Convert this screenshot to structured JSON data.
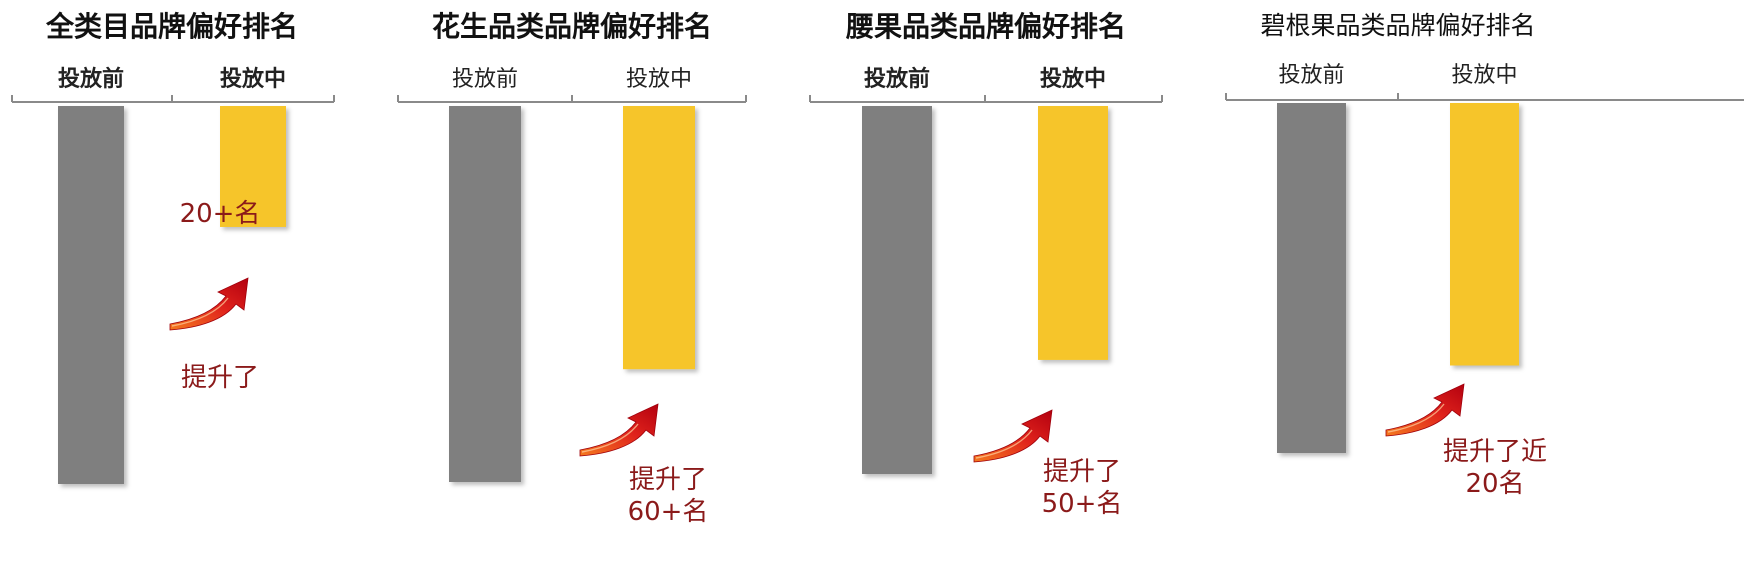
{
  "chart_data": [
    {
      "type": "bar",
      "title": "全类目品牌偏好排名",
      "categories": [
        "投放前",
        "投放中"
      ],
      "values": [
        100,
        32
      ],
      "colors": [
        "#7f7f7f",
        "#f6c52a"
      ],
      "ylabel": "",
      "xlabel": "",
      "ylim": [
        0,
        100
      ],
      "axis_position": "top",
      "inverted": true,
      "grid": false,
      "annotation": [
        "提升了",
        "20+名"
      ]
    },
    {
      "type": "bar",
      "title": "花生品类品牌偏好排名",
      "categories": [
        "投放前",
        "投放中"
      ],
      "values": [
        100,
        70
      ],
      "colors": [
        "#7f7f7f",
        "#f6c52a"
      ],
      "ylabel": "",
      "xlabel": "",
      "ylim": [
        0,
        100
      ],
      "axis_position": "top",
      "inverted": true,
      "grid": false,
      "annotation": [
        "提升了",
        "60+名"
      ]
    },
    {
      "type": "bar",
      "title": "腰果品类品牌偏好排名",
      "categories": [
        "投放前",
        "投放中"
      ],
      "values": [
        100,
        69
      ],
      "colors": [
        "#7f7f7f",
        "#f6c52a"
      ],
      "ylabel": "",
      "xlabel": "",
      "ylim": [
        0,
        100
      ],
      "axis_position": "top",
      "inverted": true,
      "grid": false,
      "annotation": [
        "提升了",
        "50+名"
      ]
    },
    {
      "type": "bar",
      "title": "碧根果品类品牌偏好排名",
      "categories": [
        "投放前",
        "投放中"
      ],
      "values": [
        100,
        75
      ],
      "colors": [
        "#7f7f7f",
        "#f6c52a"
      ],
      "ylabel": "",
      "xlabel": "",
      "ylim": [
        0,
        100
      ],
      "axis_position": "top",
      "inverted": true,
      "grid": false,
      "annotation": [
        "提升了近",
        "20名"
      ]
    }
  ]
}
